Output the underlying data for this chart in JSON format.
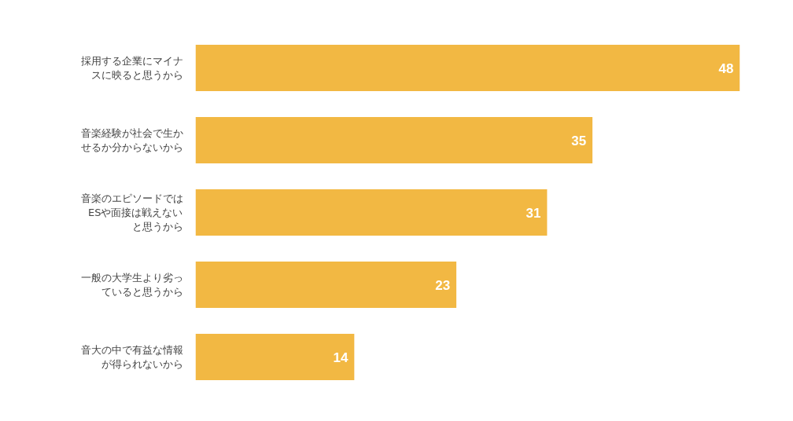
{
  "chart_data": {
    "type": "bar",
    "orientation": "horizontal",
    "categories": [
      "採用する企業にマイナスに映ると思うから",
      "音楽経験が社会で生かせるか分からないから",
      "音楽のエピソードではESや面接は戦えないと思うから",
      "一般の大学生より劣っていると思うから",
      "音大の中で有益な情報が得られないから"
    ],
    "values": [
      48,
      35,
      31,
      23,
      14
    ],
    "color": "#f2b843",
    "data_labels": true,
    "grid": false
  }
}
